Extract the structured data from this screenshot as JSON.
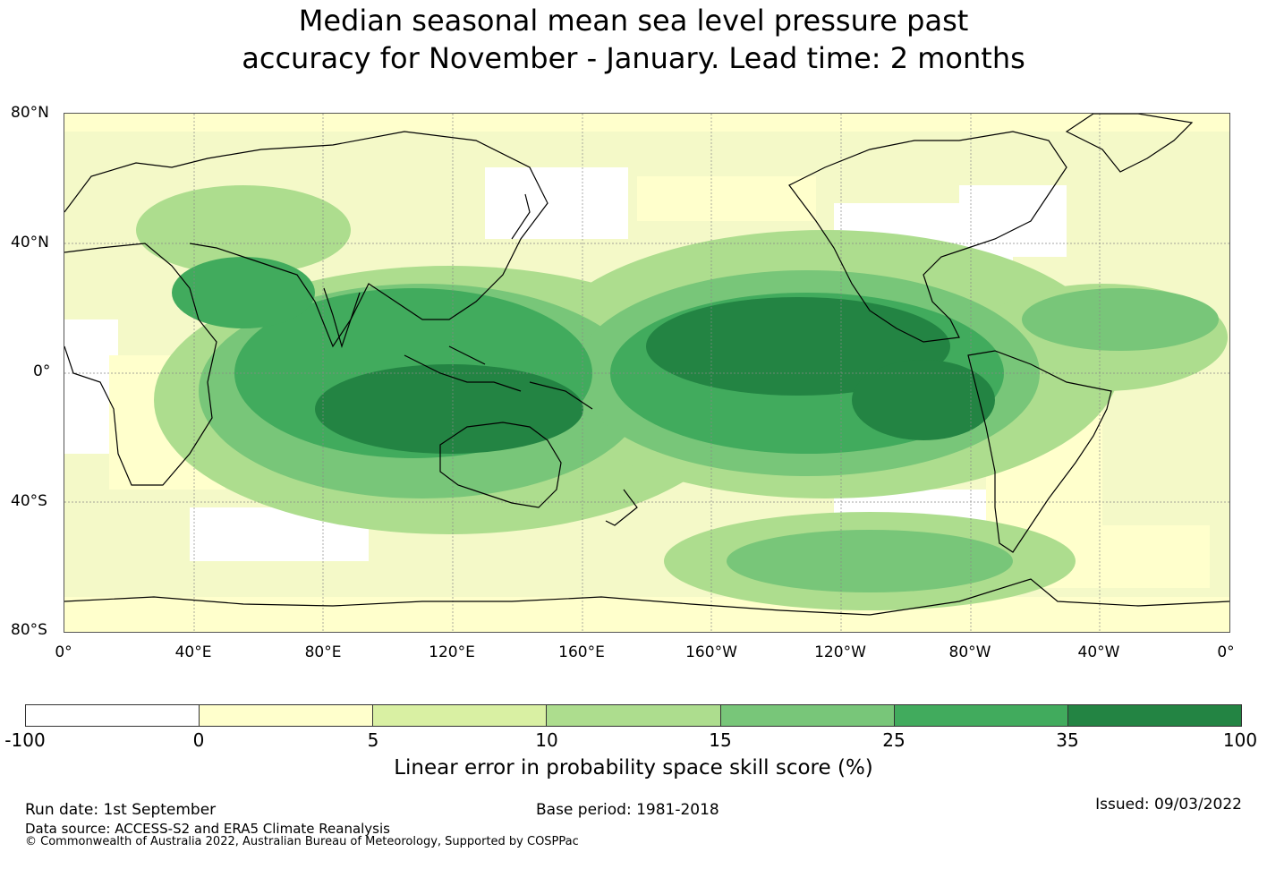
{
  "title_line1": "Median seasonal mean sea level pressure past",
  "title_line2": "accuracy for November - January. Lead time: 2 months",
  "lat_labels": [
    "80°N",
    "40°N",
    "0°",
    "40°S",
    "80°S"
  ],
  "lon_labels": [
    "0°",
    "40°E",
    "80°E",
    "120°E",
    "160°E",
    "160°W",
    "120°W",
    "80°W",
    "40°W",
    "0°"
  ],
  "colorbar": {
    "ticks": [
      "-100",
      "0",
      "5",
      "10",
      "15",
      "25",
      "35",
      "100"
    ],
    "colors": [
      "#ffffff",
      "#ffffcc",
      "#d9f0a3",
      "#addd8e",
      "#78c679",
      "#41ab5d",
      "#238443"
    ],
    "label": "Linear error in probability space skill score (%)"
  },
  "footer": {
    "run_date": "Run date: 1st September",
    "base_period": "Base period: 1981-2018",
    "issued": "Issued: 09/03/2022",
    "data_source": "Data source: ACCESS-S2 and ERA5 Climate Reanalysis",
    "copyright": "© Commonwealth of Australia 2022, Australian Bureau of Meteorology, Supported by COSPPac"
  }
}
